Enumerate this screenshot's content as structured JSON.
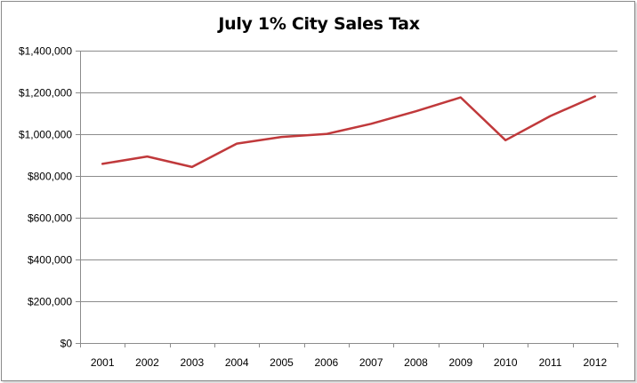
{
  "chart_data": {
    "type": "line",
    "title": "July 1% City Sales Tax",
    "xlabel": "",
    "ylabel": "",
    "categories": [
      "2001",
      "2002",
      "2003",
      "2004",
      "2005",
      "2006",
      "2007",
      "2008",
      "2009",
      "2010",
      "2011",
      "2012"
    ],
    "series": [
      {
        "values": [
          858000,
          893000,
          843000,
          955000,
          987000,
          1001000,
          1050000,
          1110000,
          1176000,
          971000,
          1087000,
          1181000
        ]
      }
    ],
    "ylim": [
      0,
      1400000
    ],
    "y_ticks": [
      "$0",
      "$200,000",
      "$400,000",
      "$600,000",
      "$800,000",
      "$1,000,000",
      "$1,200,000",
      "$1,400,000"
    ],
    "grid": "horizontal",
    "legend": "none",
    "line_color": "#c0393b",
    "grid_color": "#8c8c8c"
  }
}
